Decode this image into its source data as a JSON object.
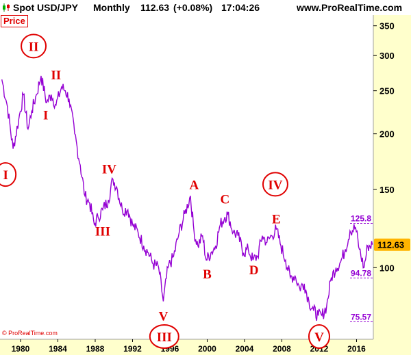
{
  "header": {
    "symbol": "Spot USD/JPY",
    "period": "Monthly",
    "price": "112.63",
    "change": "(+0.08%)",
    "time": "17:04:26",
    "site": "www.ProRealTime.com"
  },
  "price_label": "Price",
  "copyright": "© ProRealTime.com",
  "colors": {
    "line": "#9400d3",
    "wave_label": "#e00000",
    "axis_bg": "#ffffcc",
    "last_price_bg": "#ffb400",
    "level": "#9400d3"
  },
  "icons": [
    "candlestick-icon"
  ],
  "chart_data": {
    "type": "line",
    "title": "Spot USD/JPY Monthly",
    "xlabel": "",
    "ylabel": "",
    "yscale": "log",
    "ylim": [
      69,
      370
    ],
    "xlim": [
      1977.8,
      2017.8
    ],
    "x_ticks": [
      "1980",
      "1984",
      "1988",
      "1992",
      "1996",
      "2000",
      "2004",
      "2008",
      "2012",
      "2016"
    ],
    "y_ticks": [
      100,
      150,
      200,
      250,
      300,
      350
    ],
    "last_price": "112.63",
    "levels": [
      {
        "label": "125.8",
        "value": 125.8
      },
      {
        "label": "94.78",
        "value": 94.78
      },
      {
        "label": "75.57",
        "value": 75.57
      }
    ],
    "series": [
      {
        "x": [
          1978.0,
          1978.6,
          1979.2,
          1979.8,
          1980.3,
          1980.8,
          1981.2,
          1981.7,
          1982.2,
          1982.8,
          1983.3,
          1983.8,
          1984.4,
          1984.8,
          1985.2,
          1985.8,
          1986.4,
          1986.9,
          1987.4,
          1987.9,
          1988.3,
          1988.8,
          1989.4,
          1989.9,
          1990.3,
          1990.9,
          1991.5,
          1992.0,
          1992.6,
          1993.2,
          1993.7,
          1994.2,
          1994.8,
          1995.3,
          1995.8,
          1996.4,
          1997.0,
          1997.6,
          1998.2,
          1998.6,
          1999.0,
          1999.5,
          1999.9,
          2000.4,
          2000.9,
          2001.4,
          2001.9,
          2002.2,
          2002.8,
          2003.3,
          2003.9,
          2004.4,
          2004.9,
          2005.4,
          2005.9,
          2006.4,
          2006.9,
          2007.4,
          2007.9,
          2008.4,
          2008.9,
          2009.4,
          2009.9,
          2010.4,
          2010.9,
          2011.4,
          2011.9,
          2012.3,
          2012.8,
          2013.3,
          2013.8,
          2014.3,
          2014.8,
          2015.3,
          2015.9,
          2016.3,
          2016.8,
          2017.2,
          2017.7
        ],
        "values": [
          265,
          230,
          185,
          215,
          245,
          205,
          225,
          245,
          270,
          235,
          245,
          232,
          255,
          250,
          240,
          200,
          170,
          145,
          140,
          125,
          130,
          135,
          142,
          158,
          152,
          135,
          135,
          125,
          120,
          112,
          108,
          102,
          100,
          84,
          100,
          106,
          120,
          132,
          145,
          120,
          112,
          118,
          104,
          108,
          112,
          125,
          130,
          132,
          120,
          118,
          108,
          110,
          104,
          106,
          118,
          114,
          118,
          122,
          112,
          104,
          95,
          96,
          90,
          92,
          84,
          80,
          78,
          78,
          82,
          95,
          100,
          103,
          110,
          121,
          123,
          110,
          100,
          112,
          112.63
        ]
      }
    ],
    "annotations": [
      {
        "label": "I",
        "x": 1978.4,
        "y": 162,
        "circled": true
      },
      {
        "label": "II",
        "x": 1981.4,
        "y": 315,
        "circled": true
      },
      {
        "label": "II",
        "x": 1983.8,
        "y": 272,
        "circled": false
      },
      {
        "label": "I",
        "x": 1982.7,
        "y": 221,
        "circled": false
      },
      {
        "label": "IV",
        "x": 1989.5,
        "y": 167,
        "circled": false
      },
      {
        "label": "III",
        "x": 1988.8,
        "y": 121,
        "circled": false
      },
      {
        "label": "V",
        "x": 1995.3,
        "y": 78,
        "circled": false
      },
      {
        "label": "III",
        "x": 1995.4,
        "y": 70,
        "circled": true
      },
      {
        "label": "A",
        "x": 1998.6,
        "y": 154,
        "circled": false
      },
      {
        "label": "B",
        "x": 2000.0,
        "y": 97,
        "circled": false
      },
      {
        "label": "C",
        "x": 2001.9,
        "y": 143,
        "circled": false
      },
      {
        "label": "D",
        "x": 2005.0,
        "y": 99,
        "circled": false
      },
      {
        "label": "IV",
        "x": 2007.3,
        "y": 154,
        "circled": true
      },
      {
        "label": "E",
        "x": 2007.4,
        "y": 129,
        "circled": false
      },
      {
        "label": "V",
        "x": 2012.0,
        "y": 70,
        "circled": true
      }
    ]
  }
}
